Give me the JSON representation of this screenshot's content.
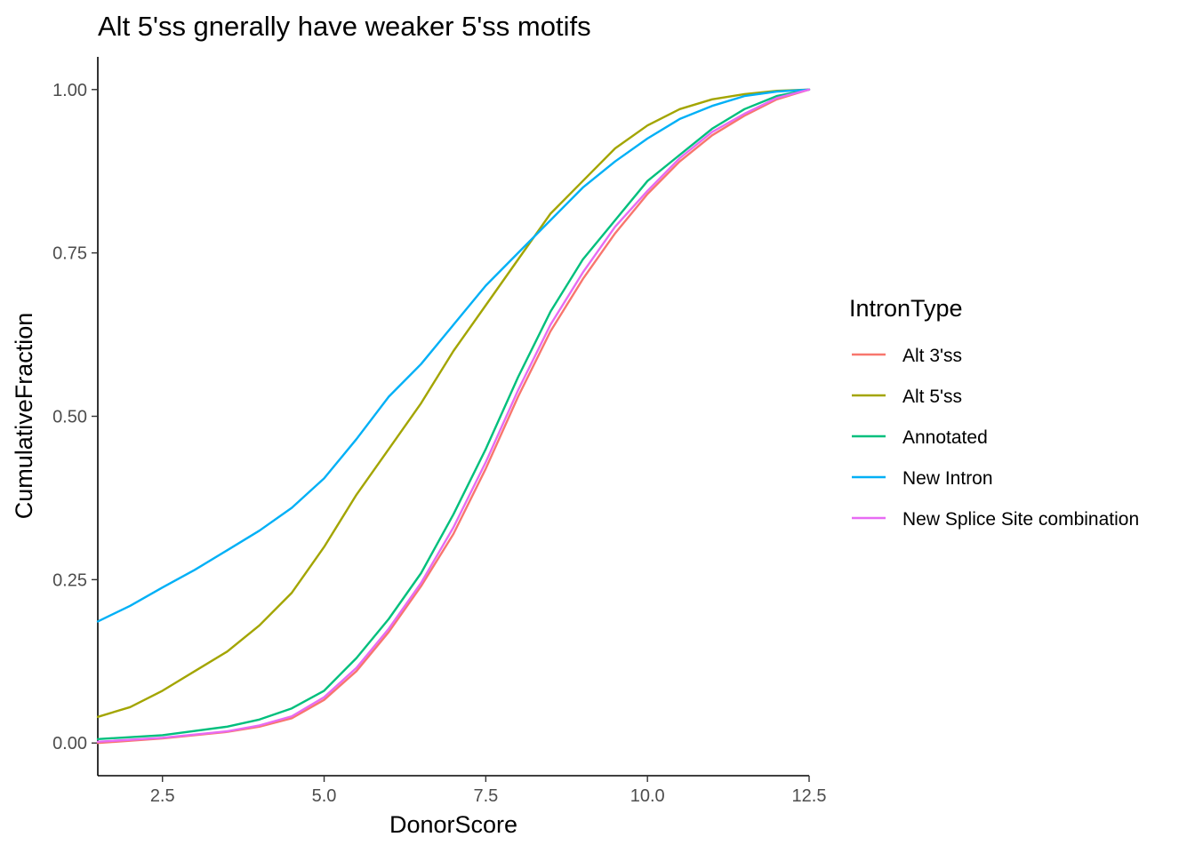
{
  "chart_data": {
    "type": "line",
    "title": "Alt 5'ss gnerally have weaker 5'ss motifs",
    "xlabel": "DonorScore",
    "ylabel": "CumulativeFraction",
    "xlim": [
      1.5,
      12.5
    ],
    "ylim": [
      -0.05,
      1.05
    ],
    "x_ticks": [
      {
        "value": 2.5,
        "label": "2.5"
      },
      {
        "value": 5.0,
        "label": "5.0"
      },
      {
        "value": 7.5,
        "label": "7.5"
      },
      {
        "value": 10.0,
        "label": "10.0"
      },
      {
        "value": 12.5,
        "label": "12.5"
      }
    ],
    "y_ticks": [
      {
        "value": 0.0,
        "label": "0.00"
      },
      {
        "value": 0.25,
        "label": "0.25"
      },
      {
        "value": 0.5,
        "label": "0.50"
      },
      {
        "value": 0.75,
        "label": "0.75"
      },
      {
        "value": 1.0,
        "label": "1.00"
      }
    ],
    "grid": false,
    "legend": {
      "title": "IntronType",
      "position": "right"
    },
    "series": [
      {
        "name": "Alt 3'ss",
        "color": "#F8766D",
        "x": [
          1.5,
          2.5,
          3.5,
          4.0,
          4.5,
          5.0,
          5.5,
          6.0,
          6.5,
          7.0,
          7.5,
          8.0,
          8.5,
          9.0,
          9.5,
          10.0,
          10.5,
          11.0,
          11.5,
          12.0,
          12.5
        ],
        "y": [
          0.0,
          0.007,
          0.017,
          0.025,
          0.038,
          0.066,
          0.11,
          0.17,
          0.24,
          0.32,
          0.42,
          0.53,
          0.63,
          0.71,
          0.78,
          0.84,
          0.89,
          0.93,
          0.96,
          0.985,
          1.0
        ]
      },
      {
        "name": "Alt 5'ss",
        "color": "#A3A500",
        "x": [
          1.5,
          2.0,
          2.5,
          3.0,
          3.5,
          4.0,
          4.5,
          5.0,
          5.5,
          6.0,
          6.5,
          7.0,
          7.5,
          8.0,
          8.5,
          9.0,
          9.5,
          10.0,
          10.5,
          11.0,
          11.5,
          12.0,
          12.5
        ],
        "y": [
          0.04,
          0.055,
          0.08,
          0.11,
          0.14,
          0.18,
          0.23,
          0.3,
          0.38,
          0.45,
          0.52,
          0.6,
          0.67,
          0.74,
          0.81,
          0.86,
          0.91,
          0.945,
          0.97,
          0.985,
          0.993,
          0.998,
          1.0
        ]
      },
      {
        "name": "Annotated",
        "color": "#00BF7D",
        "x": [
          1.5,
          2.5,
          3.5,
          4.0,
          4.5,
          5.0,
          5.5,
          6.0,
          6.5,
          7.0,
          7.5,
          8.0,
          8.5,
          9.0,
          9.5,
          10.0,
          10.5,
          11.0,
          11.5,
          12.0,
          12.5
        ],
        "y": [
          0.006,
          0.012,
          0.025,
          0.036,
          0.053,
          0.08,
          0.13,
          0.19,
          0.26,
          0.35,
          0.45,
          0.56,
          0.66,
          0.74,
          0.8,
          0.86,
          0.9,
          0.94,
          0.97,
          0.99,
          1.0
        ]
      },
      {
        "name": "New Intron",
        "color": "#00B0F6",
        "x": [
          1.5,
          2.0,
          2.5,
          3.0,
          3.5,
          4.0,
          4.5,
          5.0,
          5.5,
          6.0,
          6.5,
          7.0,
          7.5,
          8.0,
          8.5,
          9.0,
          9.5,
          10.0,
          10.5,
          11.0,
          11.5,
          12.0,
          12.5
        ],
        "y": [
          0.186,
          0.21,
          0.238,
          0.265,
          0.295,
          0.325,
          0.36,
          0.405,
          0.465,
          0.53,
          0.58,
          0.64,
          0.7,
          0.75,
          0.8,
          0.85,
          0.89,
          0.925,
          0.955,
          0.975,
          0.99,
          0.997,
          1.0
        ]
      },
      {
        "name": "New Splice Site combination",
        "color": "#E76BF3",
        "x": [
          1.5,
          2.5,
          3.5,
          4.0,
          4.5,
          5.0,
          5.5,
          6.0,
          6.5,
          7.0,
          7.5,
          8.0,
          8.5,
          9.0,
          9.5,
          10.0,
          10.5,
          11.0,
          11.5,
          12.0,
          12.5
        ],
        "y": [
          0.002,
          0.008,
          0.018,
          0.027,
          0.041,
          0.07,
          0.115,
          0.175,
          0.245,
          0.33,
          0.43,
          0.54,
          0.64,
          0.72,
          0.79,
          0.845,
          0.895,
          0.935,
          0.963,
          0.987,
          1.0
        ]
      }
    ]
  }
}
